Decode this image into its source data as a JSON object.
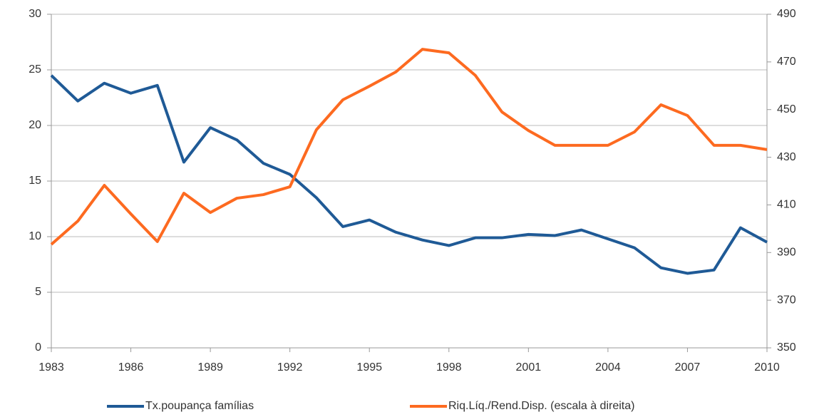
{
  "chart_data": {
    "type": "line",
    "x": [
      1983,
      1984,
      1985,
      1986,
      1987,
      1988,
      1989,
      1990,
      1991,
      1992,
      1993,
      1994,
      1995,
      1996,
      1997,
      1998,
      1999,
      2000,
      2001,
      2002,
      2003,
      2004,
      2005,
      2006,
      2007,
      2008,
      2009,
      2010
    ],
    "xlim": [
      1983,
      2010
    ],
    "xticks": [
      1983,
      1986,
      1989,
      1992,
      1995,
      1998,
      2001,
      2004,
      2007,
      2010
    ],
    "ylim": [
      0,
      30
    ],
    "yticks": [
      0,
      5,
      10,
      15,
      20,
      25,
      30
    ],
    "y2lim": [
      350,
      490
    ],
    "y2ticks": [
      350,
      370,
      390,
      410,
      430,
      450,
      470,
      490
    ],
    "grid": true,
    "legend": "bottom",
    "series": [
      {
        "name": "Tx.poupança famílias",
        "color": "#1f5a96",
        "values": [
          24.5,
          22.2,
          23.8,
          22.9,
          23.6,
          16.7,
          19.8,
          18.7,
          16.6,
          15.6,
          13.5,
          10.9,
          11.5,
          10.4,
          9.7,
          9.2,
          9.9,
          9.9,
          10.2,
          10.1,
          10.6,
          9.8,
          9.0,
          7.2,
          6.7,
          7.0,
          10.8,
          9.5
        ]
      },
      {
        "name": "Riq.Líq./Rend.Disp. (escala à direita)",
        "color": "#fd6a20",
        "axis": "y2",
        "values": [
          393.4,
          403.2,
          418.2,
          406.2,
          394.6,
          414.9,
          406.8,
          412.8,
          414.3,
          417.6,
          441.5,
          454.1,
          459.8,
          465.8,
          475.3,
          473.8,
          464.3,
          449.0,
          441.2,
          435.0,
          435.0,
          435.0,
          440.6,
          452.0,
          447.5,
          435.0,
          435.0,
          433.2
        ]
      }
    ]
  }
}
